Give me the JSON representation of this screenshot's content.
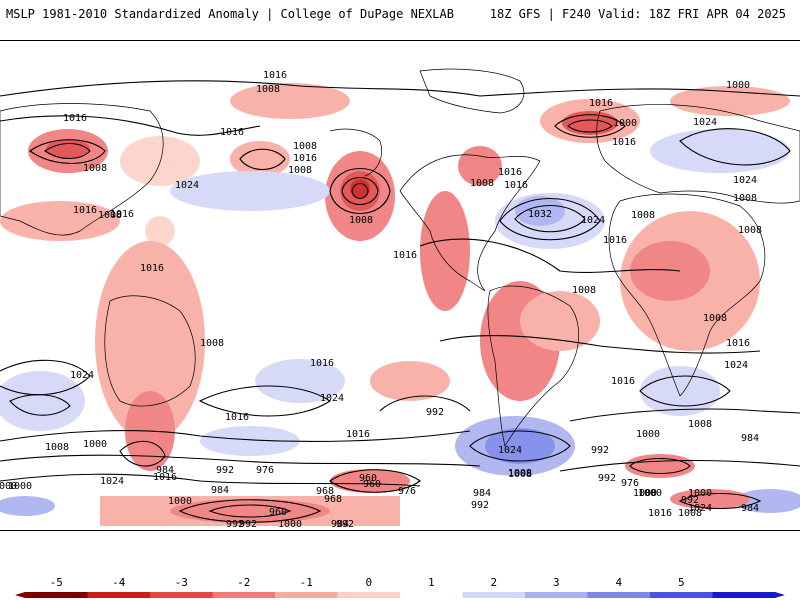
{
  "header": {
    "left_title": "MSLP 1981-2010 Standardized Anomaly | College of DuPage NEXLAB",
    "right_title": "18Z GFS | F240 Valid: 18Z FRI APR 04 2025"
  },
  "map": {
    "contour_labels": [
      "1016",
      "1008",
      "1016",
      "1016",
      "1008",
      "1016",
      "1000",
      "1016",
      "1000",
      "1016",
      "1024",
      "1008",
      "1016",
      "1008",
      "1008",
      "1024",
      "1032",
      "1024",
      "1016",
      "1024",
      "1008",
      "1016",
      "1008",
      "1016",
      "1016",
      "1008",
      "1008",
      "1016",
      "1008",
      "1008",
      "1008",
      "1008",
      "1016",
      "1016",
      "1024",
      "1016",
      "1016",
      "1008",
      "1000",
      "1024",
      "1024",
      "1008",
      "1016",
      "992",
      "1000",
      "984",
      "1000",
      "1016",
      "1024",
      "1008",
      "1000",
      "992",
      "984",
      "1016",
      "1000",
      "1000",
      "992",
      "992",
      "976",
      "984",
      "968",
      "960",
      "976",
      "984",
      "968",
      "976",
      "992",
      "960",
      "1008",
      "992",
      "992",
      "984",
      "1000",
      "1024",
      "1016",
      "1008",
      "1000",
      "1024",
      "992",
      "984",
      "960",
      "1000",
      "992"
    ],
    "colors": {
      "land_outline": "#000000",
      "ocean": "#ffffff",
      "contour": "#000000"
    }
  },
  "colorbar": {
    "ticks": [
      "-5",
      "-4",
      "-3",
      "-2",
      "-1",
      "0",
      "1",
      "2",
      "3",
      "4",
      "5"
    ],
    "colors": [
      "#7a0000",
      "#c81e1e",
      "#e04848",
      "#f07a7a",
      "#f8aaa0",
      "#fcd2c8",
      "#ffffff",
      "#d2d6f8",
      "#a8b0f0",
      "#7a86e8",
      "#4a54e0",
      "#1818c8"
    ]
  }
}
